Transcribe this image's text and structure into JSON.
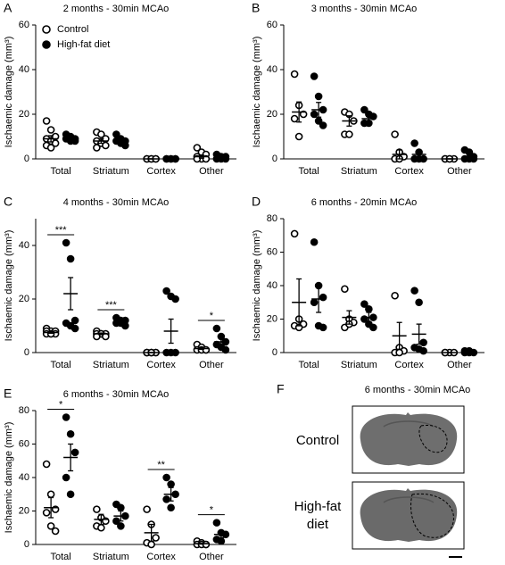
{
  "chart_data": [
    {
      "type": "dot",
      "label": "A",
      "title": "2 months - 30min MCAo",
      "ylabel": "Ischaemic damage (mm³)",
      "categories": [
        "Total",
        "Striatum",
        "Cortex",
        "Other"
      ],
      "ylim": [
        0,
        60
      ],
      "yticks": [
        0,
        20,
        40,
        60
      ],
      "series": [
        {
          "name": "Control",
          "color": "#000000",
          "filled": false,
          "values": [
            [
              17,
              13,
              10,
              9,
              8,
              7,
              6,
              5
            ],
            [
              12,
              11,
              9,
              8,
              7,
              6,
              5
            ],
            [
              0,
              0,
              0,
              0,
              0,
              0
            ],
            [
              5,
              3,
              2,
              1,
              0,
              0,
              0
            ]
          ],
          "mean": [
            9,
            8,
            0,
            1
          ],
          "sem": [
            1.4,
            1,
            0,
            0.7
          ]
        },
        {
          "name": "High-fat diet",
          "color": "#000000",
          "filled": true,
          "values": [
            [
              11,
              10,
              9,
              9,
              8,
              8
            ],
            [
              11,
              9,
              8,
              8,
              7,
              6
            ],
            [
              0,
              0,
              0,
              0,
              0,
              0
            ],
            [
              2,
              1,
              1,
              0,
              0,
              0
            ]
          ],
          "mean": [
            9,
            8,
            0,
            1
          ],
          "sem": [
            0.5,
            0.7,
            0,
            0.3
          ]
        }
      ],
      "significance": [
        null,
        null,
        null,
        null
      ]
    },
    {
      "type": "dot",
      "label": "B",
      "title": "3 months - 30min MCAo",
      "ylabel": "Ischaemic damage (mm³)",
      "categories": [
        "Total",
        "Striatum",
        "Cortex",
        "Other"
      ],
      "ylim": [
        0,
        60
      ],
      "yticks": [
        0,
        20,
        40,
        60
      ],
      "series": [
        {
          "color": "#000000",
          "filled": false,
          "values": [
            [
              38,
              24,
              20,
              18,
              10
            ],
            [
              21,
              20,
              17,
              11,
              11
            ],
            [
              11,
              3,
              1,
              0,
              0
            ],
            [
              0,
              0,
              0,
              0,
              0
            ]
          ],
          "mean": [
            21,
            17,
            2,
            0
          ],
          "sem": [
            4.5,
            2.3,
            2,
            0
          ]
        },
        {
          "color": "#000000",
          "filled": true,
          "values": [
            [
              37,
              28,
              22,
              20,
              17,
              15
            ],
            [
              22,
              20,
              19,
              16,
              16
            ],
            [
              7,
              3,
              0,
              0,
              0
            ],
            [
              4,
              3,
              1,
              0,
              0,
              0
            ]
          ],
          "mean": [
            22,
            18,
            2,
            1
          ],
          "sem": [
            3.3,
            1.2,
            1.4,
            0.7
          ]
        }
      ],
      "significance": [
        null,
        null,
        null,
        null
      ]
    },
    {
      "type": "dot",
      "label": "C",
      "title": "4 months - 30min MCAo",
      "ylabel": "Ischaemic damage (mm³)",
      "categories": [
        "Total",
        "Striatum",
        "Cortex",
        "Other"
      ],
      "ylim": [
        0,
        50
      ],
      "yticks": [
        0,
        20,
        40
      ],
      "series": [
        {
          "color": "#000000",
          "filled": false,
          "values": [
            [
              9,
              8,
              8,
              8,
              7,
              7,
              7,
              7
            ],
            [
              8,
              7,
              7,
              7,
              7,
              6,
              6
            ],
            [
              0,
              0,
              0,
              0,
              0,
              0,
              0,
              0
            ],
            [
              3,
              2,
              1,
              1,
              1,
              1
            ]
          ],
          "mean": [
            7.5,
            7,
            0,
            1.5
          ],
          "sem": [
            0.3,
            0.3,
            0,
            0.3
          ]
        },
        {
          "color": "#000000",
          "filled": true,
          "values": [
            [
              41,
              35,
              12,
              11,
              10,
              9
            ],
            [
              13,
              12,
              12,
              11,
              11,
              10
            ],
            [
              23,
              21,
              20,
              0,
              0,
              0
            ],
            [
              9,
              6,
              4,
              3,
              2,
              1
            ]
          ],
          "mean": [
            22,
            11.5,
            8,
            4
          ],
          "sem": [
            6,
            0.5,
            4.5,
            1.2
          ]
        }
      ],
      "significance": [
        "***",
        "***",
        null,
        "*"
      ]
    },
    {
      "type": "dot",
      "label": "D",
      "title": "6 months - 20min MCAo",
      "ylabel": "Ischaemic damage (mm³)",
      "categories": [
        "Total",
        "Striatum",
        "Cortex",
        "Other"
      ],
      "ylim": [
        0,
        80
      ],
      "yticks": [
        0,
        20,
        40,
        60,
        80
      ],
      "series": [
        {
          "color": "#000000",
          "filled": false,
          "values": [
            [
              71,
              20,
              17,
              16,
              15
            ],
            [
              38,
              20,
              18,
              15,
              17
            ],
            [
              34,
              3,
              1,
              0,
              0
            ],
            [
              0,
              0,
              0,
              0
            ]
          ],
          "mean": [
            30,
            21,
            10,
            0
          ],
          "sem": [
            14,
            4,
            8,
            0
          ]
        },
        {
          "color": "#000000",
          "filled": true,
          "values": [
            [
              66,
              40,
              33,
              30,
              16,
              15
            ],
            [
              29,
              26,
              21,
              20,
              17,
              15
            ],
            [
              37,
              30,
              6,
              3,
              2,
              1
            ],
            [
              1,
              1,
              0,
              0,
              0
            ]
          ],
          "mean": [
            32,
            21,
            11,
            0
          ],
          "sem": [
            8,
            3,
            6,
            0
          ]
        }
      ],
      "significance": [
        null,
        null,
        null,
        null
      ]
    },
    {
      "type": "dot",
      "label": "E",
      "title": "6 months - 30min MCAo",
      "ylabel": "Ischaemic damage (mm³)",
      "categories": [
        "Total",
        "Striatum",
        "Cortex",
        "Other"
      ],
      "ylim": [
        0,
        80
      ],
      "yticks": [
        0,
        20,
        40,
        60,
        80
      ],
      "series": [
        {
          "color": "#000000",
          "filled": false,
          "values": [
            [
              48,
              30,
              21,
              19,
              11,
              8
            ],
            [
              21,
              16,
              14,
              11,
              10
            ],
            [
              21,
              12,
              4,
              1,
              0
            ],
            [
              2,
              1,
              0,
              0,
              0,
              0
            ]
          ],
          "mean": [
            22,
            15,
            7,
            0.5
          ],
          "sem": [
            6,
            3,
            5,
            0.3
          ]
        },
        {
          "color": "#000000",
          "filled": true,
          "values": [
            [
              76,
              66,
              55,
              40,
              30
            ],
            [
              24,
              22,
              17,
              14,
              11
            ],
            [
              40,
              36,
              30,
              27,
              22
            ],
            [
              13,
              7,
              6,
              3,
              2
            ]
          ],
          "mean": [
            52,
            17,
            30,
            6
          ],
          "sem": [
            8,
            3,
            4,
            2
          ]
        }
      ],
      "significance": [
        "*",
        null,
        "**",
        "*"
      ]
    }
  ],
  "panel_f": {
    "label": "F",
    "title": "6 months - 30min MCAo",
    "rows": [
      "Control",
      "High-fat diet"
    ]
  }
}
